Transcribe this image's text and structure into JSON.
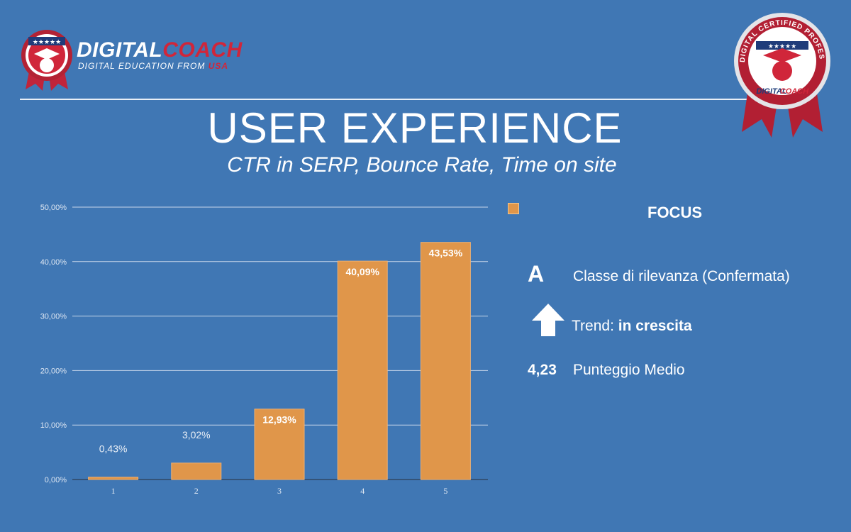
{
  "header": {
    "logo_word_1": "DIGITAL",
    "logo_word_2": "COACH",
    "logo_tagline": "DIGITAL EDUCATION FROM",
    "logo_tagline_accent": "USA",
    "seal_ring_text": "DIGITAL CERTIFIED PROFESSIONAL",
    "seal_brand_1": "DIGITAL",
    "seal_brand_2": "COACH",
    "title": "USER EXPERIENCE",
    "subtitle": "CTR in SERP, Bounce Rate, Time on site"
  },
  "colors": {
    "background": "#4077b4",
    "bar": "#e0964a",
    "brand_red": "#d0263a"
  },
  "chart_data": {
    "type": "bar",
    "categories": [
      "1",
      "2",
      "3",
      "4",
      "5"
    ],
    "values": [
      0.43,
      3.02,
      12.93,
      40.09,
      43.53
    ],
    "data_labels": [
      "0,43%",
      "3,02%",
      "12,93%",
      "40,09%",
      "43,53%"
    ],
    "y_ticks": [
      0,
      10,
      20,
      30,
      40,
      50
    ],
    "y_tick_labels": [
      "0,00%",
      "10,00%",
      "20,00%",
      "30,00%",
      "40,00%",
      "50,00%"
    ],
    "ylim": [
      0,
      50
    ],
    "grid": true,
    "legend_placement": "top-right",
    "xlabel": "",
    "ylabel": ""
  },
  "focus": {
    "heading": "FOCUS",
    "class_letter": "A",
    "class_text": "Classe di rilevanza (Confermata)",
    "trend_icon": "arrow-up-icon",
    "trend_label": "Trend: ",
    "trend_value": "in crescita",
    "score_value": "4,23",
    "score_label": "Punteggio Medio"
  }
}
